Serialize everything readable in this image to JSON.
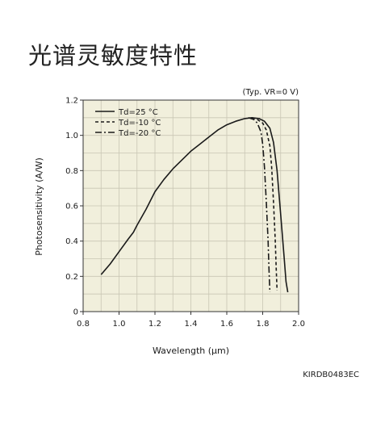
{
  "page": {
    "title": "光谱灵敏度特性"
  },
  "chart_data": {
    "type": "line",
    "title": "",
    "xlabel": "Wavelength (μm)",
    "ylabel": "Photosensitivity (A/W)",
    "xlim": [
      0.8,
      2.0
    ],
    "ylim": [
      0,
      1.2
    ],
    "x_ticks": [
      "0.8",
      "1.0",
      "1.2",
      "1.4",
      "1.6",
      "1.8",
      "2.0"
    ],
    "y_ticks": [
      "0",
      "0.2",
      "0.4",
      "0.6",
      "0.8",
      "1.0",
      "1.2"
    ],
    "grid": true,
    "legend_position": "top-left",
    "condition_note": "(Typ. VR=0 V)",
    "code": "KIRDB0483EC",
    "background_color": "#f1efdc",
    "line_color": "#1a1a1a",
    "series": [
      {
        "name": "Td=25 °C",
        "style": "solid",
        "points": [
          [
            0.9,
            0.21
          ],
          [
            0.95,
            0.27
          ],
          [
            1.0,
            0.34
          ],
          [
            1.05,
            0.41
          ],
          [
            1.08,
            0.45
          ],
          [
            1.1,
            0.49
          ],
          [
            1.15,
            0.58
          ],
          [
            1.2,
            0.68
          ],
          [
            1.25,
            0.75
          ],
          [
            1.3,
            0.81
          ],
          [
            1.35,
            0.86
          ],
          [
            1.4,
            0.91
          ],
          [
            1.45,
            0.95
          ],
          [
            1.5,
            0.99
          ],
          [
            1.55,
            1.03
          ],
          [
            1.6,
            1.06
          ],
          [
            1.65,
            1.08
          ],
          [
            1.7,
            1.095
          ],
          [
            1.74,
            1.1
          ],
          [
            1.78,
            1.095
          ],
          [
            1.81,
            1.08
          ],
          [
            1.84,
            1.04
          ],
          [
            1.86,
            0.96
          ],
          [
            1.88,
            0.8
          ],
          [
            1.9,
            0.55
          ],
          [
            1.92,
            0.3
          ],
          [
            1.93,
            0.17
          ],
          [
            1.94,
            0.11
          ]
        ]
      },
      {
        "name": "Td=-10 °C",
        "style": "dashed",
        "points": [
          [
            1.74,
            1.1
          ],
          [
            1.77,
            1.09
          ],
          [
            1.8,
            1.07
          ],
          [
            1.82,
            1.03
          ],
          [
            1.84,
            0.94
          ],
          [
            1.85,
            0.82
          ],
          [
            1.86,
            0.62
          ],
          [
            1.87,
            0.4
          ],
          [
            1.875,
            0.25
          ],
          [
            1.88,
            0.12
          ]
        ]
      },
      {
        "name": "Td=-20 °C",
        "style": "dashdot",
        "points": [
          [
            1.72,
            1.1
          ],
          [
            1.75,
            1.09
          ],
          [
            1.77,
            1.07
          ],
          [
            1.79,
            1.02
          ],
          [
            1.8,
            0.95
          ],
          [
            1.81,
            0.82
          ],
          [
            1.82,
            0.62
          ],
          [
            1.83,
            0.4
          ],
          [
            1.835,
            0.24
          ],
          [
            1.84,
            0.11
          ]
        ]
      }
    ]
  }
}
